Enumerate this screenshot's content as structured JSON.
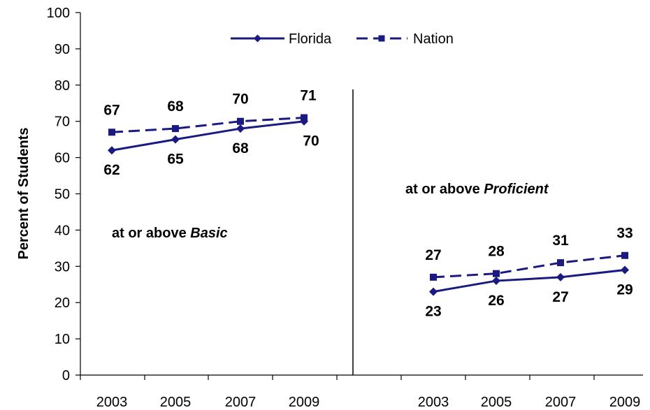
{
  "chart_data": {
    "type": "line",
    "ylabel": "Percent of Students",
    "ylim": [
      0,
      100
    ],
    "yticks": [
      0,
      10,
      20,
      30,
      40,
      50,
      60,
      70,
      80,
      90,
      100
    ],
    "grid": false,
    "legend": {
      "placement": "top-center",
      "entries": [
        "Florida",
        "Nation"
      ]
    },
    "colors": {
      "series": "#1a1a80",
      "axis": "#000000"
    },
    "panels": [
      {
        "annotation": {
          "prefix": "at or above ",
          "emphasis": "Basic"
        },
        "categories": [
          "2003",
          "2005",
          "2007",
          "2009"
        ],
        "series": [
          {
            "name": "Florida",
            "values": [
              62,
              65,
              68,
              70
            ],
            "style": "solid",
            "marker": "diamond"
          },
          {
            "name": "Nation",
            "values": [
              67,
              68,
              70,
              71
            ],
            "style": "dashed",
            "marker": "square"
          }
        ]
      },
      {
        "annotation": {
          "prefix": "at or above ",
          "emphasis": "Proficient"
        },
        "categories": [
          "2003",
          "2005",
          "2007",
          "2009"
        ],
        "series": [
          {
            "name": "Florida",
            "values": [
              23,
              26,
              27,
              29
            ],
            "style": "solid",
            "marker": "diamond"
          },
          {
            "name": "Nation",
            "values": [
              27,
              28,
              31,
              33
            ],
            "style": "dashed",
            "marker": "square"
          }
        ]
      }
    ]
  }
}
